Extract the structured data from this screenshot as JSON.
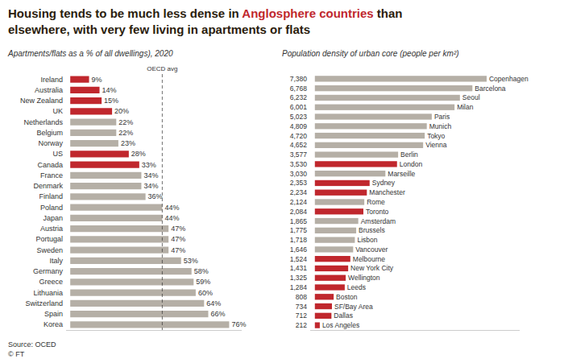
{
  "chart_data": [
    {
      "type": "bar",
      "orientation": "horizontal",
      "title": [
        [
          {
            "text": "Housing tends to be much less dense in ",
            "color": "#2b1d0e"
          },
          {
            "text": "Anglosphere countries",
            "color": "#c0272d"
          },
          {
            "text": " than",
            "color": "#2b1d0e"
          }
        ],
        [
          {
            "text": "elsewhere, with very few living in apartments or flats",
            "color": "#2b1d0e"
          }
        ]
      ],
      "subtitle": "Apartments/flats as a % of all dwellings), 2020",
      "categories": [
        "Ireland",
        "Australia",
        "New Zealand",
        "UK",
        "Netherlands",
        "Belgium",
        "Norway",
        "US",
        "Canada",
        "France",
        "Denmark",
        "Finland",
        "Poland",
        "Japan",
        "Austria",
        "Portugal",
        "Sweden",
        "Italy",
        "Germany",
        "Greece",
        "Lithuania",
        "Switzerland",
        "Spain",
        "Korea"
      ],
      "values": [
        9,
        14,
        15,
        20,
        22,
        22,
        23,
        28,
        33,
        34,
        34,
        36,
        44,
        44,
        47,
        47,
        47,
        53,
        58,
        59,
        60,
        64,
        66,
        76
      ],
      "value_labels": [
        "9%",
        "14%",
        "15%",
        "20%",
        "22%",
        "22%",
        "23%",
        "28%",
        "33%",
        "34%",
        "34%",
        "36%",
        "44%",
        "44%",
        "47%",
        "47%",
        "47%",
        "53%",
        "58%",
        "59%",
        "60%",
        "64%",
        "66%",
        "76%"
      ],
      "colors": [
        "#c0272d",
        "#c0272d",
        "#c0272d",
        "#c0272d",
        "#b5afa6",
        "#b5afa6",
        "#b5afa6",
        "#c0272d",
        "#c0272d",
        "#b5afa6",
        "#b5afa6",
        "#b5afa6",
        "#b5afa6",
        "#b5afa6",
        "#b5afa6",
        "#b5afa6",
        "#b5afa6",
        "#b5afa6",
        "#b5afa6",
        "#b5afa6",
        "#b5afa6",
        "#b5afa6",
        "#b5afa6",
        "#b5afa6"
      ],
      "xlim": [
        -2,
        82
      ],
      "reference_line": {
        "value": 44,
        "label": "OECD avg"
      },
      "data_labels": true,
      "tick_labels": "y",
      "grid": false,
      "annotations": [
        "Source: OCED\n© FT"
      ]
    },
    {
      "type": "bar",
      "orientation": "horizontal",
      "subtitle": "Population density of urban core (people per km²)",
      "categories": [
        "Copenhagen",
        "Barcelona",
        "Seoul",
        "Milan",
        "Paris",
        "Munich",
        "Tokyo",
        "Vienna",
        "Berlin",
        "London",
        "Marseille",
        "Sydney",
        "Manchester",
        "Rome",
        "Toronto",
        "Amsterdam",
        "Brussels",
        "Lisbon",
        "Vancouver",
        "Melbourne",
        "New York City",
        "Wellington",
        "Leeds",
        "Boston",
        "SF/Bay Area",
        "Dallas",
        "Los Angeles"
      ],
      "values": [
        7380,
        6768,
        6232,
        6001,
        5023,
        4809,
        4720,
        4652,
        3577,
        3530,
        3030,
        2353,
        2234,
        2124,
        2084,
        1865,
        1775,
        1718,
        1646,
        1524,
        1431,
        1325,
        1284,
        808,
        734,
        712,
        212
      ],
      "value_labels": [
        "7,380",
        "6,768",
        "6,232",
        "6,001",
        "5,023",
        "4,809",
        "4,720",
        "4,652",
        "3,577",
        "3,530",
        "3,030",
        "2,353",
        "2,234",
        "2,124",
        "2,084",
        "1,865",
        "1,775",
        "1,718",
        "1,646",
        "1,524",
        "1,431",
        "1,325",
        "1,284",
        "808",
        "734",
        "712",
        "212"
      ],
      "colors": [
        "#b5afa6",
        "#b5afa6",
        "#b5afa6",
        "#b5afa6",
        "#b5afa6",
        "#b5afa6",
        "#b5afa6",
        "#b5afa6",
        "#b5afa6",
        "#c0272d",
        "#b5afa6",
        "#c0272d",
        "#c0272d",
        "#b5afa6",
        "#c0272d",
        "#b5afa6",
        "#b5afa6",
        "#b5afa6",
        "#b5afa6",
        "#c0272d",
        "#c0272d",
        "#c0272d",
        "#c0272d",
        "#c0272d",
        "#c0272d",
        "#c0272d",
        "#c0272d"
      ],
      "xlim": [
        -200,
        8800
      ],
      "data_labels": true,
      "tick_labels": "y",
      "grid": false
    }
  ]
}
